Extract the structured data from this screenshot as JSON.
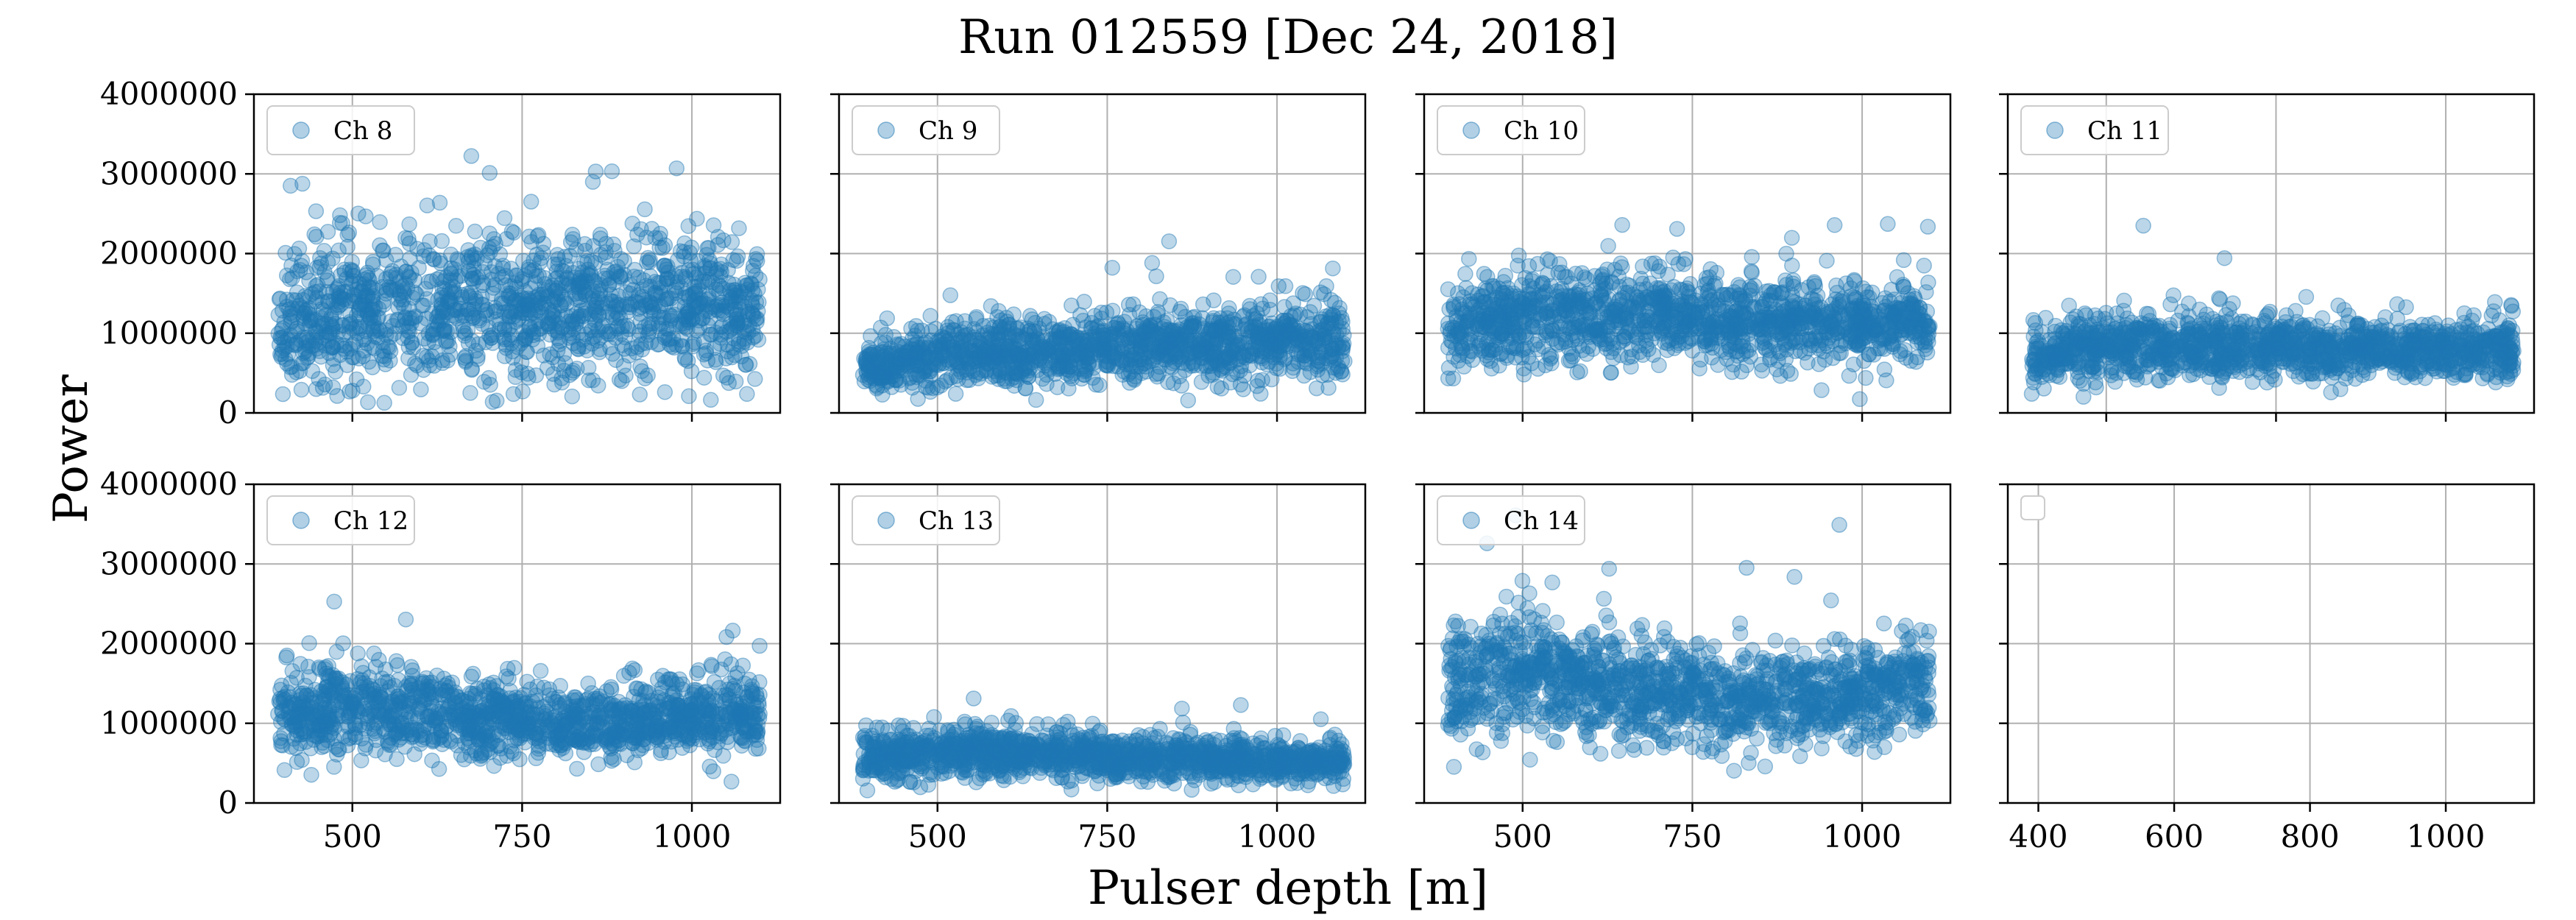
{
  "title": "Run 012559 [Dec 24, 2018]",
  "xlabel": "Pulser depth [m]",
  "ylabel": "Power",
  "colors": {
    "points": "#1f77b4",
    "grid": "#b0b0b0",
    "axes": "#000000"
  },
  "chart_data": {
    "type": "scatter",
    "layout": "2x4 grid of subplots, shared y-axis",
    "grid": true,
    "legend_placement": "upper left",
    "marker_alpha": 0.3,
    "ylim": [
      0,
      4000000
    ],
    "yticks": [
      0,
      1000000,
      2000000,
      3000000,
      4000000
    ],
    "ytick_labels": [
      "0",
      "1000000",
      "2000000",
      "3000000",
      "4000000"
    ],
    "xlim": [
      355,
      1130
    ],
    "xticks": [
      500,
      750,
      1000
    ],
    "xtick_labels": [
      "500",
      "750",
      "1000"
    ],
    "empty_panel": {
      "xlim": [
        355,
        1130
      ],
      "xticks": [
        400,
        600,
        800,
        1000
      ],
      "xtick_labels": [
        "400",
        "600",
        "800",
        "1000"
      ]
    },
    "series": [
      {
        "name": "Ch 8",
        "x_range": [
          390,
          1100
        ],
        "profile": [
          [
            390,
            1050000,
            380000
          ],
          [
            500,
            1300000,
            420000
          ],
          [
            650,
            1350000,
            450000
          ],
          [
            800,
            1300000,
            450000
          ],
          [
            950,
            1350000,
            400000
          ],
          [
            1100,
            1300000,
            380000
          ]
        ]
      },
      {
        "name": "Ch 9",
        "x_range": [
          390,
          1100
        ],
        "profile": [
          [
            390,
            600000,
            150000
          ],
          [
            550,
            750000,
            200000
          ],
          [
            700,
            800000,
            220000
          ],
          [
            850,
            850000,
            230000
          ],
          [
            1000,
            900000,
            230000
          ],
          [
            1100,
            950000,
            230000
          ]
        ]
      },
      {
        "name": "Ch 10",
        "x_range": [
          390,
          1100
        ],
        "profile": [
          [
            390,
            1000000,
            250000
          ],
          [
            500,
            1200000,
            300000
          ],
          [
            650,
            1250000,
            280000
          ],
          [
            800,
            1150000,
            260000
          ],
          [
            950,
            1100000,
            240000
          ],
          [
            1100,
            1100000,
            230000
          ]
        ]
      },
      {
        "name": "Ch 11",
        "x_range": [
          390,
          1100
        ],
        "profile": [
          [
            390,
            700000,
            180000
          ],
          [
            500,
            850000,
            200000
          ],
          [
            650,
            820000,
            200000
          ],
          [
            800,
            800000,
            190000
          ],
          [
            950,
            800000,
            180000
          ],
          [
            1100,
            750000,
            170000
          ]
        ]
      },
      {
        "name": "Ch 12",
        "x_range": [
          390,
          1100
        ],
        "profile": [
          [
            390,
            1100000,
            250000
          ],
          [
            500,
            1200000,
            280000
          ],
          [
            650,
            1100000,
            260000
          ],
          [
            800,
            1000000,
            220000
          ],
          [
            950,
            1050000,
            230000
          ],
          [
            1100,
            1100000,
            250000
          ]
        ]
      },
      {
        "name": "Ch 13",
        "x_range": [
          390,
          1100
        ],
        "profile": [
          [
            390,
            600000,
            160000
          ],
          [
            550,
            650000,
            150000
          ],
          [
            700,
            620000,
            140000
          ],
          [
            850,
            550000,
            130000
          ],
          [
            1000,
            520000,
            130000
          ],
          [
            1100,
            520000,
            120000
          ]
        ]
      },
      {
        "name": "Ch 14",
        "x_range": [
          390,
          1100
        ],
        "profile": [
          [
            390,
            1500000,
            400000
          ],
          [
            500,
            1700000,
            380000
          ],
          [
            650,
            1400000,
            330000
          ],
          [
            800,
            1250000,
            300000
          ],
          [
            950,
            1300000,
            300000
          ],
          [
            1100,
            1550000,
            320000
          ]
        ]
      }
    ]
  }
}
